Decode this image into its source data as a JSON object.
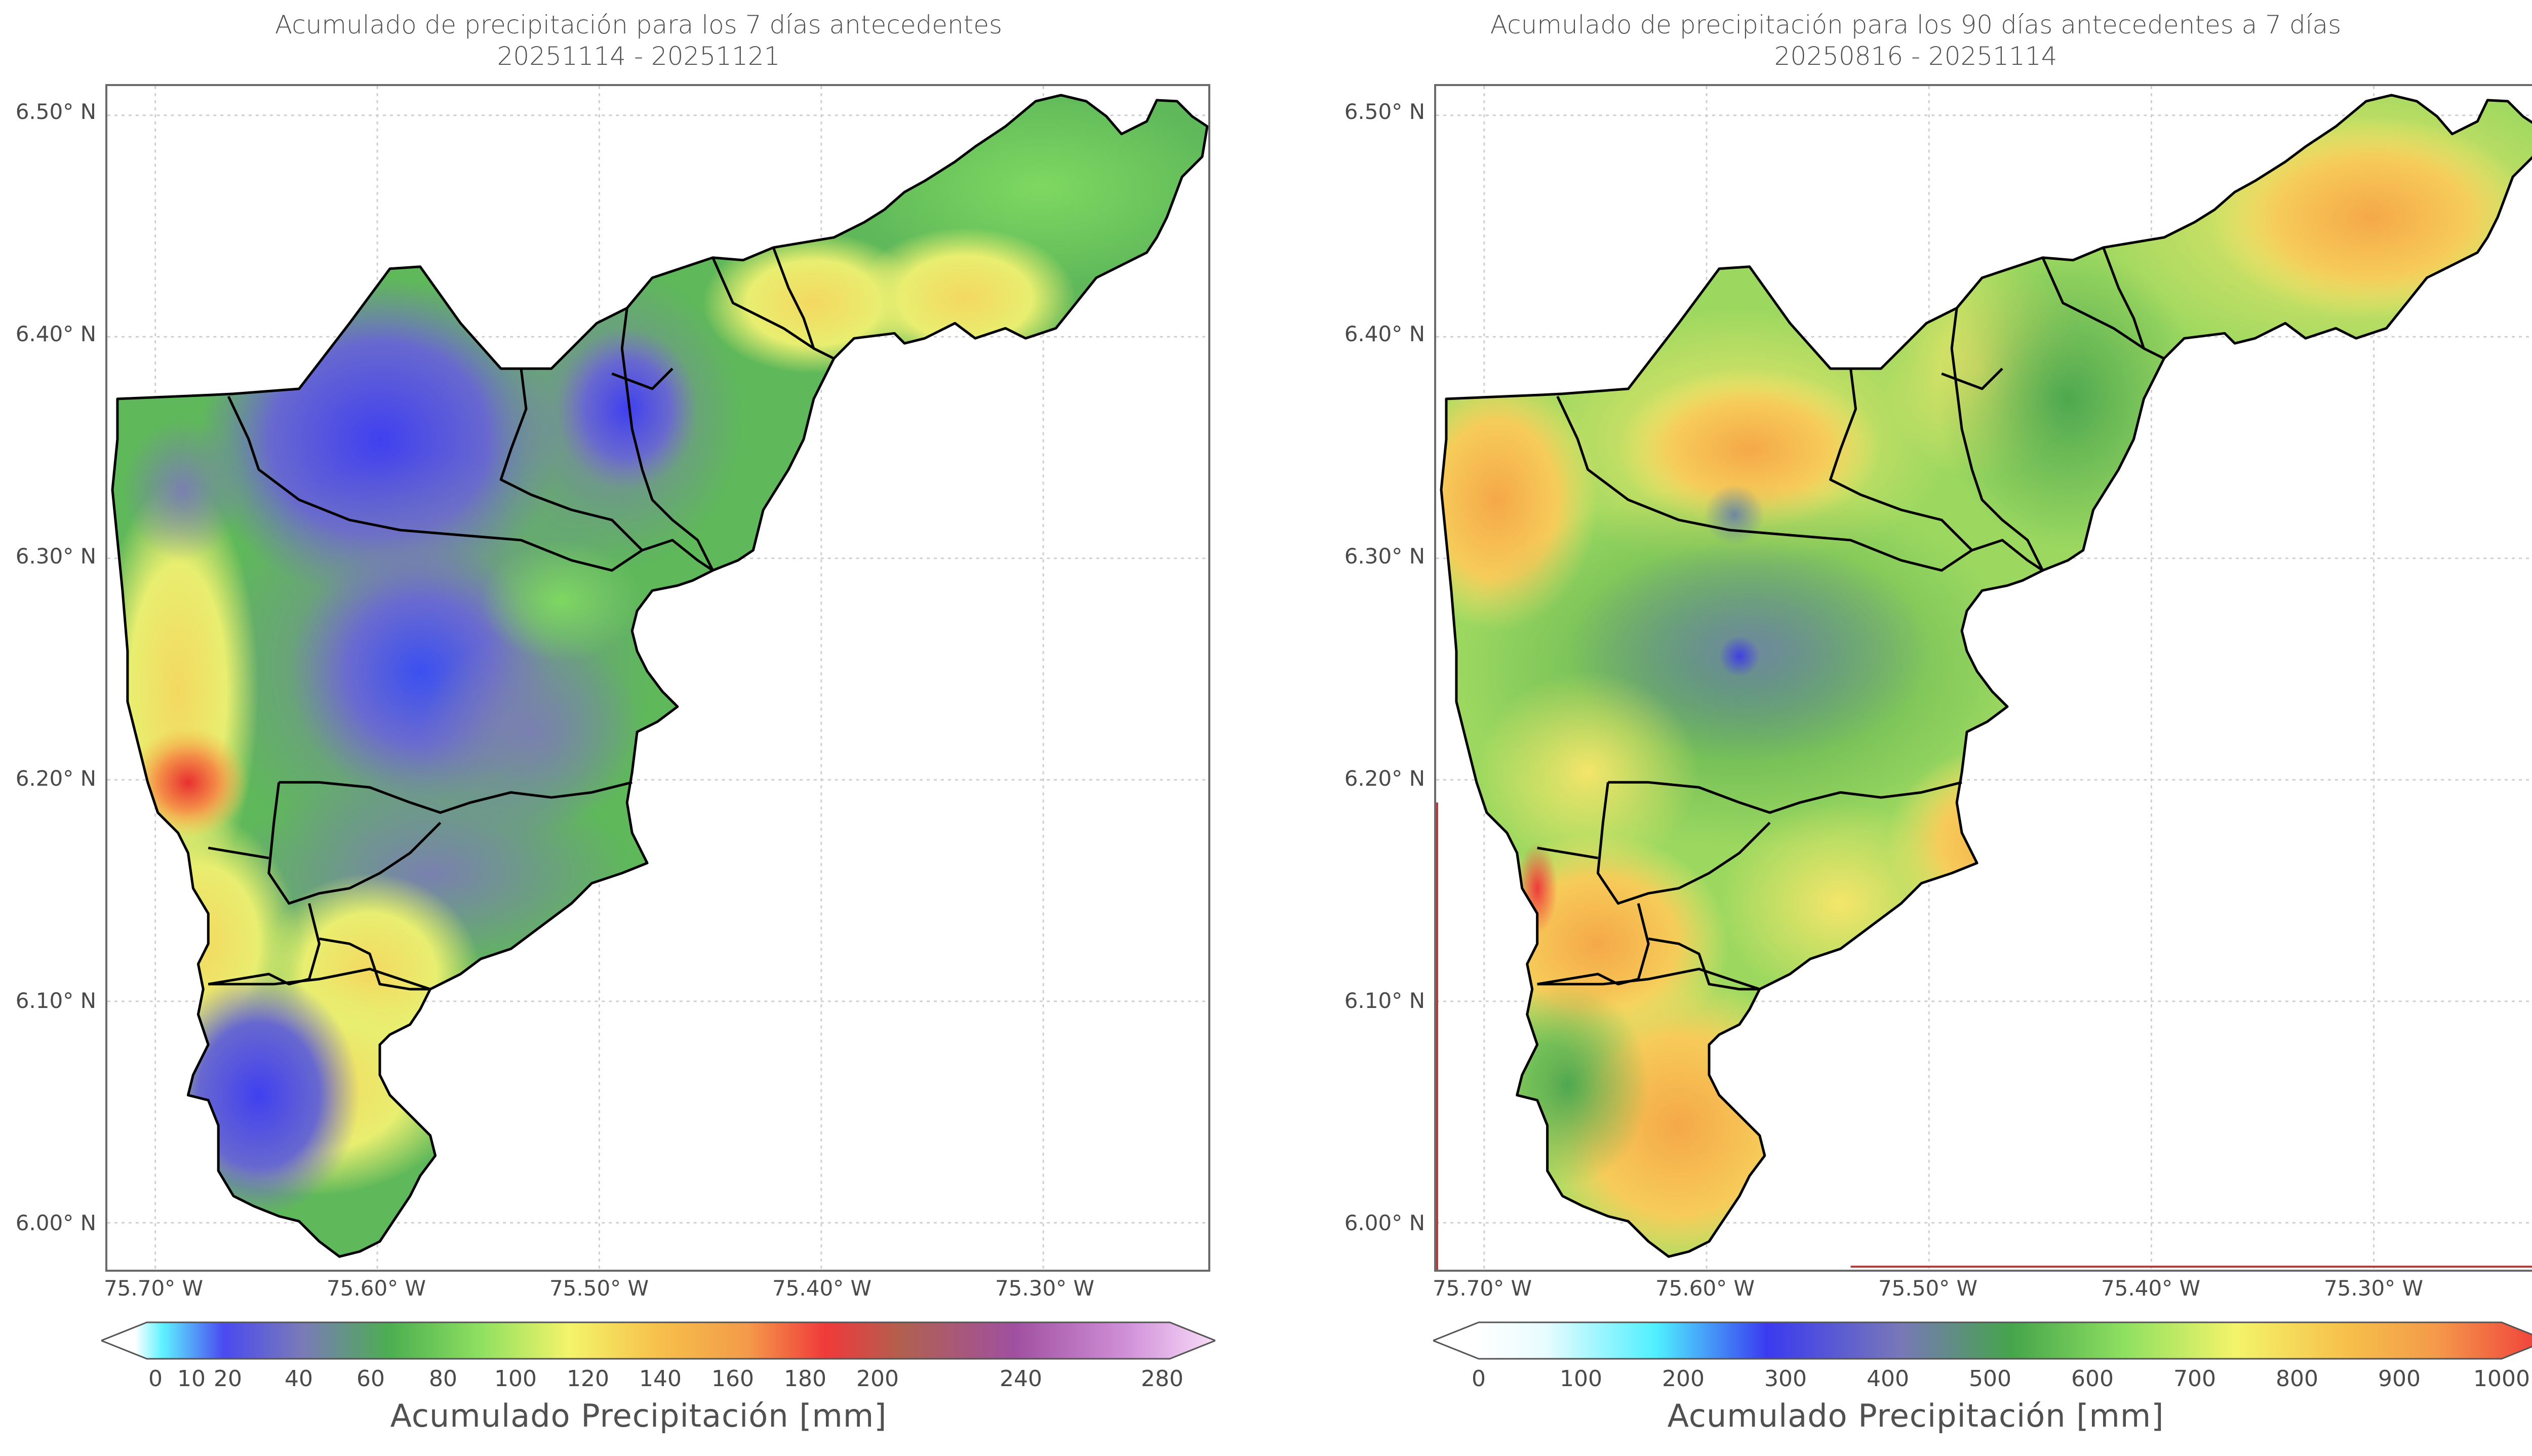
{
  "left_panel": {
    "title_line1": "Acumulado de precipitación para los 7 días antecedentes",
    "title_line2": "20251114 - 20251121",
    "y_ticks": [
      "6.50° N",
      "6.40° N",
      "6.30° N",
      "6.20° N",
      "6.10° N",
      "6.00° N"
    ],
    "x_ticks": [
      "75.70° W",
      "75.60° W",
      "75.50° W",
      "75.40° W",
      "75.30° W"
    ],
    "colorbar_ticks": [
      "0",
      "10",
      "20",
      "40",
      "60",
      "80",
      "100",
      "120",
      "140",
      "160",
      "180",
      "200",
      "240",
      "280"
    ],
    "colorbar_label": "Acumulado Precipitación [mm]"
  },
  "right_panel": {
    "title_line1": "Acumulado de precipitación para los 90 días antecedentes a 7 días",
    "title_line2": "20250816 - 20251114",
    "y_ticks": [
      "6.50° N",
      "6.40° N",
      "6.30° N",
      "6.20° N",
      "6.10° N",
      "6.00° N"
    ],
    "x_ticks": [
      "75.70° W",
      "75.60° W",
      "75.50° W",
      "75.40° W",
      "75.30° W"
    ],
    "colorbar_ticks": [
      "0",
      "100",
      "200",
      "300",
      "400",
      "500",
      "600",
      "700",
      "800",
      "900",
      "1000"
    ],
    "colorbar_label": "Acumulado Precipitación [mm]"
  },
  "colors": {
    "boundary": "#000000",
    "grid": "#c8c8c8",
    "left_scale": [
      "#ffffff",
      "#ffffff",
      "#3ff3ff",
      "#4a4af0",
      "#7a7ab8",
      "#4caf50",
      "#8ee060",
      "#f4f46a",
      "#f6c04a",
      "#f49a4a",
      "#f03a3a",
      "#b06050",
      "#a050a0",
      "#d090d8",
      "#f8dcf8"
    ],
    "right_scale": [
      "#ffffff",
      "#e8fcff",
      "#4ff0ff",
      "#3a3af0",
      "#7878b8",
      "#45a54a",
      "#8ee060",
      "#f4f46a",
      "#f6c04a",
      "#f49a4a",
      "#f03a3a"
    ]
  }
}
